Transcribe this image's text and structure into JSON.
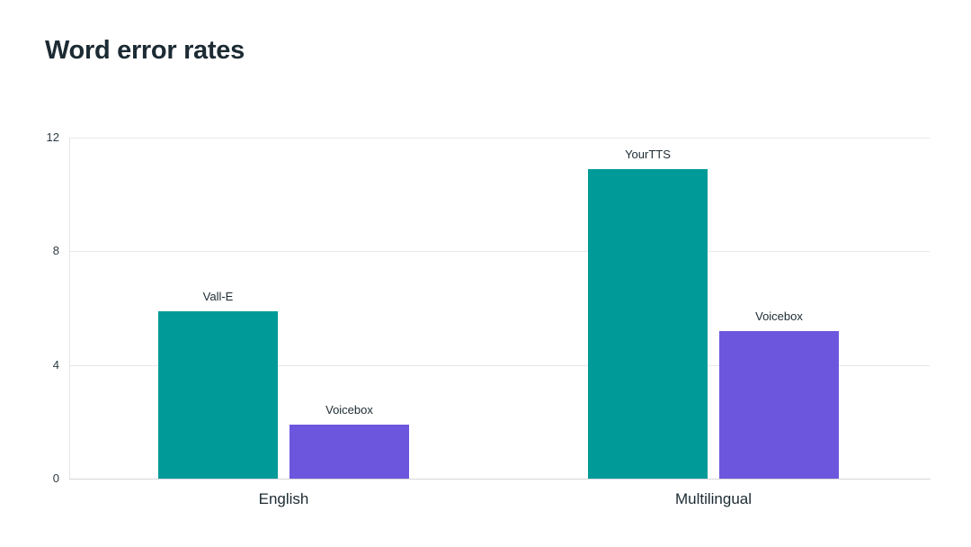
{
  "chart_data": {
    "type": "bar",
    "title": "Word error rates",
    "xlabel": "",
    "ylabel": "",
    "ylim": [
      0,
      12
    ],
    "yticks": [
      0,
      4,
      8,
      12
    ],
    "grid": true,
    "legend_position": "none",
    "bar_label_position": "above-bar",
    "categories": [
      "English",
      "Multilingual"
    ],
    "groups": [
      {
        "category": "English",
        "bars": [
          {
            "label": "Vall-E",
            "value": 5.9,
            "color": "#009a99"
          },
          {
            "label": "Voicebox",
            "value": 1.9,
            "color": "#6c56de"
          }
        ]
      },
      {
        "category": "Multilingual",
        "bars": [
          {
            "label": "YourTTS",
            "value": 10.9,
            "color": "#009a99"
          },
          {
            "label": "Voicebox",
            "value": 5.2,
            "color": "#6c56de"
          }
        ]
      }
    ],
    "colors": {
      "teal": "#009a99",
      "purple": "#6c56de",
      "title_text": "#1c2b33",
      "tick_text": "#2b3b44",
      "gridline": "#e7e8ea",
      "axis_line": "#d4d6da",
      "background": "#ffffff"
    }
  }
}
